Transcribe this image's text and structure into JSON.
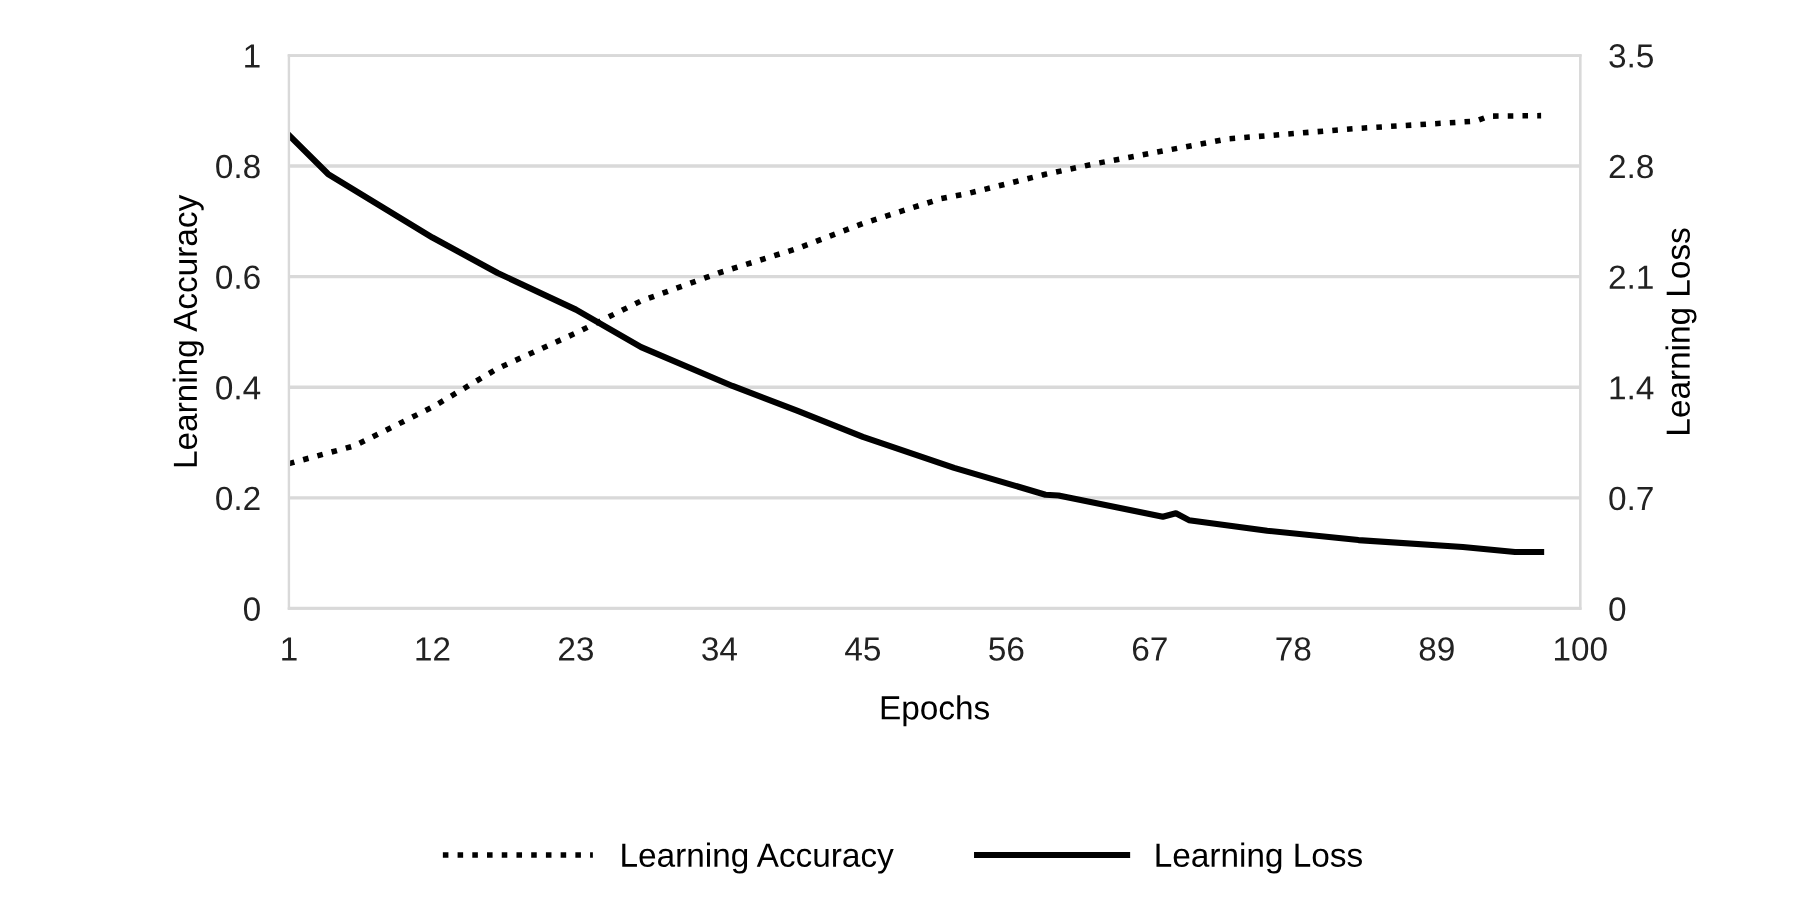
{
  "chart_data": {
    "type": "line",
    "xlabel": "Epochs",
    "ylabel": "Learning Accuracy",
    "y2label": "Learning Loss",
    "series": [
      {
        "name": "Learning Accuracy",
        "color": "#000000",
        "line_style": "dotted",
        "x": [
          1,
          6,
          12,
          17,
          23,
          28,
          34,
          40,
          45,
          51,
          53,
          59,
          63,
          73,
          83,
          92,
          93,
          97
        ],
        "values": [
          0.262,
          0.294,
          0.364,
          0.434,
          0.498,
          0.556,
          0.607,
          0.651,
          0.696,
          0.741,
          0.75,
          0.785,
          0.805,
          0.849,
          0.868,
          0.881,
          0.89,
          0.891
        ]
      },
      {
        "name": "Learning Loss",
        "color": "#000000",
        "line_style": "solid",
        "axis": "y2",
        "x": [
          1,
          4,
          8,
          12,
          17,
          23,
          28,
          35,
          40,
          45,
          52,
          59,
          60,
          68,
          69,
          70,
          76,
          83,
          91,
          95,
          97
        ],
        "values": [
          2.995,
          2.749,
          2.548,
          2.347,
          2.123,
          1.891,
          1.654,
          1.408,
          1.251,
          1.086,
          0.89,
          0.72,
          0.715,
          0.581,
          0.603,
          0.559,
          0.492,
          0.433,
          0.389,
          0.358,
          0.358
        ]
      }
    ],
    "xlim": [
      1,
      100
    ],
    "xticks": [
      1,
      12,
      23,
      34,
      45,
      56,
      67,
      78,
      89,
      100
    ],
    "ylim": [
      0,
      1
    ],
    "yticks": [
      0,
      0.2,
      0.4,
      0.6,
      0.8,
      1
    ],
    "y2lim": [
      0,
      3.5
    ],
    "y2ticks": [
      0,
      0.7,
      1.4,
      2.1,
      2.8,
      3.5
    ],
    "grid": "y",
    "legend": "bottom",
    "marker": "none"
  }
}
